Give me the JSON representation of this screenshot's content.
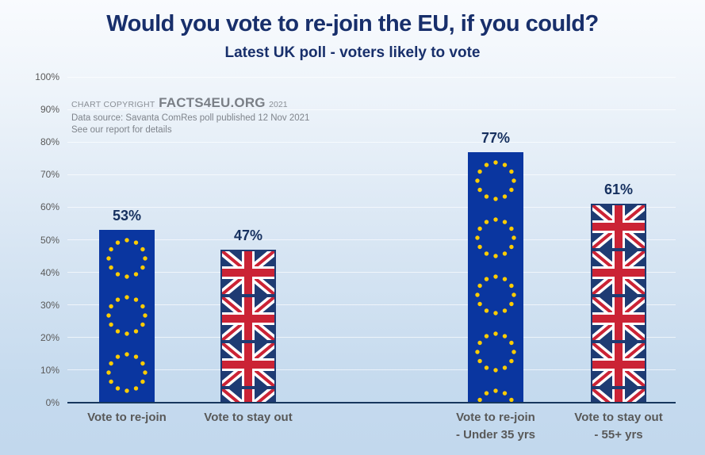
{
  "title": "Would you vote to re-join the EU, if you could?",
  "subtitle": "Latest UK poll - voters likely to vote",
  "copyright": {
    "prefix": "CHART COPYRIGHT",
    "brand": "FACTS4EU.ORG",
    "year": "2021",
    "source": "Data source: Savanta ComRes poll published 12 Nov 2021",
    "note": "See our report for details"
  },
  "chart_data": {
    "type": "bar",
    "title": "Would you vote to re-join the EU, if you could?",
    "subtitle": "Latest UK poll - voters likely to vote",
    "categories": [
      {
        "label_lines": [
          "Vote to re-join"
        ],
        "flag": "eu"
      },
      {
        "label_lines": [
          "Vote to stay out"
        ],
        "flag": "uk"
      },
      {
        "label_lines": [
          "Vote to re-join",
          "- Under 35 yrs"
        ],
        "flag": "eu"
      },
      {
        "label_lines": [
          "Vote to stay out",
          "- 55+ yrs"
        ],
        "flag": "uk"
      }
    ],
    "values": [
      53,
      47,
      77,
      61
    ],
    "value_labels": [
      "53%",
      "47%",
      "77%",
      "61%"
    ],
    "y_ticks": [
      "0%",
      "10%",
      "20%",
      "30%",
      "40%",
      "50%",
      "60%",
      "70%",
      "80%",
      "90%",
      "100%"
    ],
    "ylim": [
      0,
      100
    ],
    "grid": true,
    "legend": "none",
    "xlabel": "",
    "ylabel": ""
  },
  "colors": {
    "title_navy": "#182f6b",
    "value_label_navy": "#16305f",
    "category_gray": "#595959",
    "axis_navy": "#17375e",
    "eu_flag_blue": "#0a36a0",
    "eu_star_gold": "#ffcc00",
    "uk_flag_navy": "#1e3b73",
    "uk_flag_red": "#cb2335",
    "uk_flag_white": "#ffffff"
  }
}
